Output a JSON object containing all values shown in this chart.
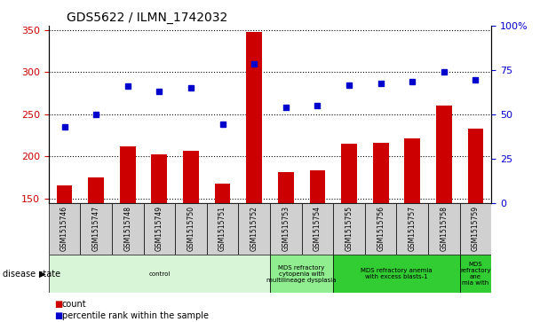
{
  "title": "GDS5622 / ILMN_1742032",
  "samples": [
    "GSM1515746",
    "GSM1515747",
    "GSM1515748",
    "GSM1515749",
    "GSM1515750",
    "GSM1515751",
    "GSM1515752",
    "GSM1515753",
    "GSM1515754",
    "GSM1515755",
    "GSM1515756",
    "GSM1515757",
    "GSM1515758",
    "GSM1515759"
  ],
  "counts": [
    166,
    175,
    212,
    203,
    207,
    168,
    348,
    181,
    184,
    215,
    216,
    221,
    260,
    233
  ],
  "percentile_ranks_left_units": [
    235,
    250,
    284,
    277,
    281,
    238,
    310,
    258,
    260,
    285,
    287,
    289,
    300,
    291
  ],
  "ylim_left": [
    145,
    355
  ],
  "ylim_right": [
    0,
    100
  ],
  "yticks_left": [
    150,
    200,
    250,
    300,
    350
  ],
  "yticks_right": [
    0,
    25,
    50,
    75,
    100
  ],
  "bar_color": "#cc0000",
  "dot_color": "#0000cc",
  "label_box_color": "#d0d0d0",
  "disease_states": [
    {
      "label": "control",
      "start": 0,
      "end": 7,
      "color": "#d8f5d8"
    },
    {
      "label": "MDS refractory\ncytopenia with\nmultilineage dysplasia",
      "start": 7,
      "end": 9,
      "color": "#90ee90"
    },
    {
      "label": "MDS refractory anemia\nwith excess blasts-1",
      "start": 9,
      "end": 13,
      "color": "#32cd32"
    },
    {
      "label": "MDS\nrefractory\nane\nmia with",
      "start": 13,
      "end": 14,
      "color": "#32cd32"
    }
  ],
  "disease_state_label": "disease state",
  "legend_count_label": "count",
  "legend_pct_label": "percentile rank within the sample",
  "bar_width": 0.5
}
